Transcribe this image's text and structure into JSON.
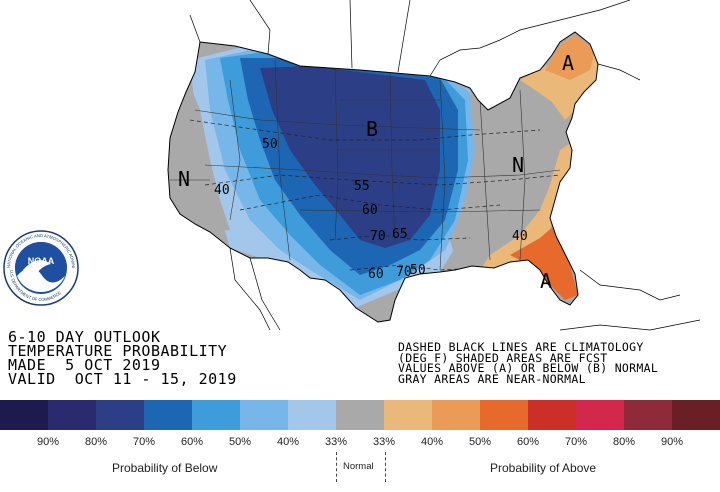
{
  "title_lines": [
    "6-10 DAY OUTLOOK",
    "TEMPERATURE PROBABILITY",
    "MADE  5 OCT 2019",
    "VALID  OCT 11 - 15, 2019"
  ],
  "note_lines": [
    "DASHED BLACK LINES ARE CLIMATOLOGY",
    "(DEG F) SHADED AREAS ARE FCST",
    "VALUES ABOVE (A) OR BELOW (B) NORMAL",
    "GRAY AREAS ARE NEAR-NORMAL"
  ],
  "logo": {
    "text": "NOAA",
    "ring_text": "NATIONAL OCEANIC AND ATMOSPHERIC ADMINISTRATION",
    "ring_text_bottom": "U.S. DEPARTMENT OF COMMERCE"
  },
  "map_labels": {
    "b": "B",
    "a_ne": "A",
    "a_fl": "A",
    "n_west": "N",
    "n_east": "N"
  },
  "climo_labels": [
    "50",
    "40",
    "55",
    "60",
    "70",
    "65",
    "60",
    "70",
    "50",
    "40"
  ],
  "legend": {
    "colors": [
      "#1c1a4e",
      "#2a2a6e",
      "#2c3f86",
      "#1d66b4",
      "#3e9cdb",
      "#76b6e9",
      "#a3c7ea",
      "#a9a9a9",
      "#eab878",
      "#ea9b55",
      "#e76a2c",
      "#cc2f27",
      "#d3284b",
      "#8e2a3a",
      "#6a1f26"
    ],
    "percents": [
      "90%",
      "80%",
      "70%",
      "60%",
      "50%",
      "40%",
      "33%",
      "33%",
      "40%",
      "50%",
      "60%",
      "70%",
      "80%",
      "90%"
    ],
    "below_caption": "Probability of Below",
    "normal_caption": "Normal",
    "above_caption": "Probability of Above"
  }
}
